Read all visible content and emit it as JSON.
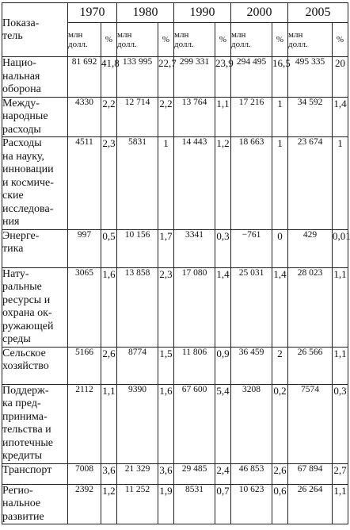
{
  "header": {
    "parameter_label": "Показа-\nтель",
    "years": [
      "1970",
      "1980",
      "1990",
      "2000",
      "2005"
    ],
    "units_label": "млн\nдолл.",
    "percent_label": "%"
  },
  "rows": [
    {
      "name": "Нацио-\nнальная\nоборона",
      "cells": [
        "81 692",
        "41,8",
        "133 995",
        "22,7",
        "299 331",
        "23,9",
        "294 495",
        "16,5",
        "495 335",
        "20"
      ]
    },
    {
      "name": "Между-\nнародные\nрасходы",
      "cells": [
        "4330",
        "2,2",
        "12 714",
        "2,2",
        "13 764",
        "1,1",
        "17 216",
        "1",
        "34 592",
        "1,4"
      ]
    },
    {
      "name": "Расходы\nна науку,\nинновации\nи космиче-\nские\nисследова-\nния",
      "cells": [
        "4511",
        "2,3",
        "5831",
        "1",
        "14 443",
        "1,2",
        "18 663",
        "1",
        "23 674",
        "1"
      ]
    },
    {
      "name": "Энерге-\nтика",
      "cells": [
        "997",
        "0,5",
        "10 156",
        "1,7",
        "3341",
        "0,3",
        "−761",
        "0",
        "429",
        "0,01"
      ]
    },
    {
      "name": "Нату-\nральные\nресурсы и\nохрана ок-\nружающей\nсреды",
      "cells": [
        "3065",
        "1,6",
        "13 858",
        "2,3",
        "17 080",
        "1,4",
        "25 031",
        "1,4",
        "28 023",
        "1,1"
      ]
    },
    {
      "name": "Сельское\nхозяйство",
      "cells": [
        "5166",
        "2,6",
        "8774",
        "1,5",
        "11 806",
        "0,9",
        "36 459",
        "2",
        "26 566",
        "1,1"
      ]
    },
    {
      "name": "Поддерж-\nка пред-\nпринима-\nтельства и\nипотечные\nкредиты",
      "cells": [
        "2112",
        "1,1",
        "9390",
        "1,6",
        "67 600",
        "5,4",
        "3208",
        "0,2",
        "7574",
        "0,3"
      ]
    },
    {
      "name": "Транспорт",
      "cells": [
        "7008",
        "3,6",
        "21 329",
        "3,6",
        "29 485",
        "2,4",
        "46 853",
        "2,6",
        "67 894",
        "2,7"
      ]
    },
    {
      "name": "Регио-\nнальное\nразвитие",
      "cells": [
        "2392",
        "1,2",
        "11 252",
        "1,9",
        "8531",
        "0,7",
        "10 623",
        "0,6",
        "26 264",
        "1,1"
      ]
    }
  ]
}
